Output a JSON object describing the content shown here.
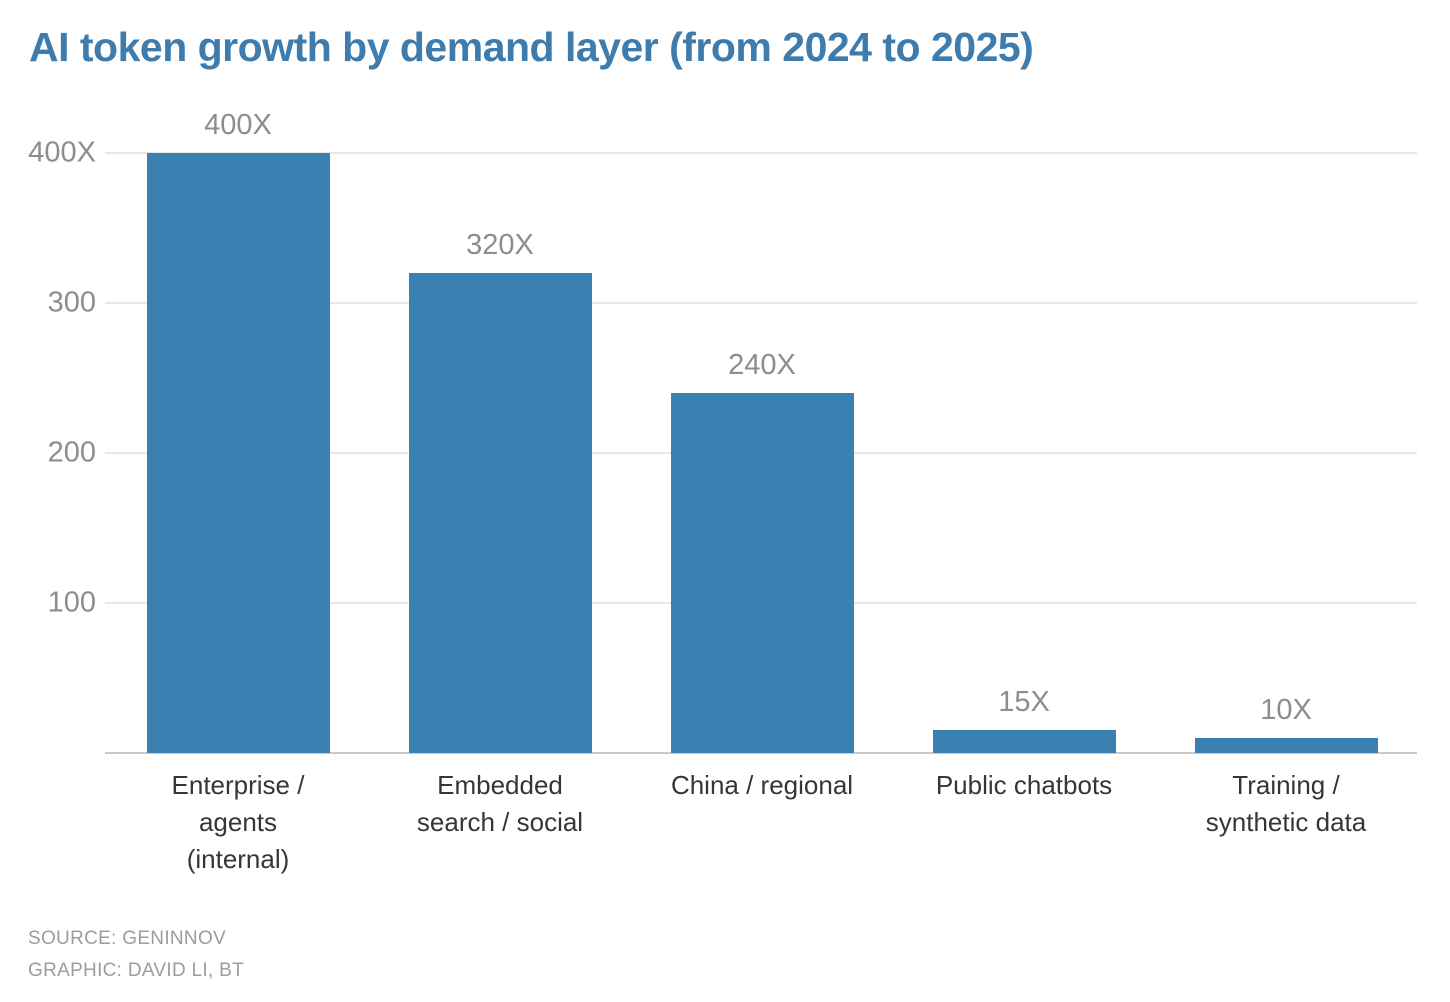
{
  "title": "AI token growth by demand layer (from 2024 to 2025)",
  "footer": {
    "source": "SOURCE: GENINNOV",
    "credit": "GRAPHIC: DAVID LI, BT"
  },
  "colors": {
    "title": "#3e7cad",
    "bar": "#3a80b0",
    "grid": "#e7e7e7",
    "axis_line": "#c9c9c9",
    "tick_label": "#8d8d8d",
    "value_label": "#8d8d8d",
    "category_label": "#363636",
    "footer_text": "#9c9c9c",
    "background": "#ffffff"
  },
  "chart_data": {
    "type": "bar",
    "title": "AI token growth by demand layer (from 2024 to 2025)",
    "categories": [
      "Enterprise / agents (internal)",
      "Embedded search / social",
      "China / regional",
      "Public chatbots",
      "Training / synthetic data"
    ],
    "category_lines": [
      [
        "Enterprise /",
        "agents",
        "(internal)"
      ],
      [
        "Embedded",
        "search / social"
      ],
      [
        "China / regional"
      ],
      [
        "Public chatbots"
      ],
      [
        "Training /",
        "synthetic data"
      ]
    ],
    "values": [
      400,
      320,
      240,
      15,
      10
    ],
    "value_labels": [
      "400X",
      "320X",
      "240X",
      "15X",
      "10X"
    ],
    "xlabel": "",
    "ylabel": "",
    "ylim": [
      0,
      400
    ],
    "y_ticks": [
      {
        "value": 400,
        "label": "400X"
      },
      {
        "value": 300,
        "label": "300"
      },
      {
        "value": 200,
        "label": "200"
      },
      {
        "value": 100,
        "label": "100"
      }
    ],
    "grid": true,
    "legend": false
  }
}
